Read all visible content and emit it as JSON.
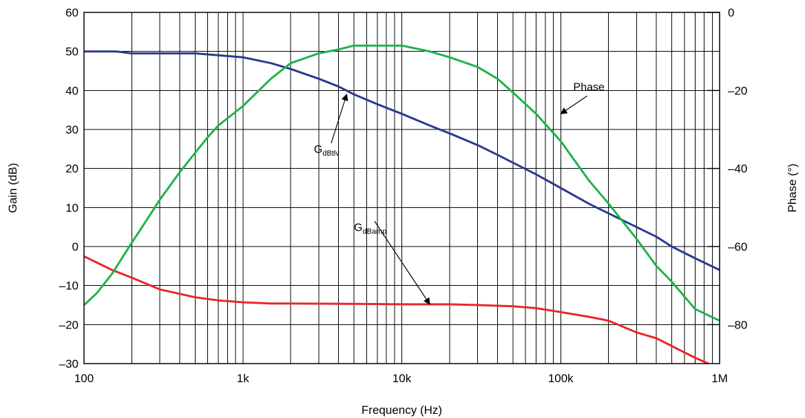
{
  "chart_data": {
    "type": "line",
    "title": "",
    "xlabel": "Frequency (Hz)",
    "ylabel": "Gain (dB)",
    "y2label": "Phase (°)",
    "x_scale": "log",
    "xlim": [
      100,
      1000000
    ],
    "ylim": [
      -30,
      60
    ],
    "y2lim": [
      -90,
      0
    ],
    "grid": true,
    "x_ticks": [
      {
        "value": 100,
        "label": "100"
      },
      {
        "value": 1000,
        "label": "1k"
      },
      {
        "value": 10000,
        "label": "10k"
      },
      {
        "value": 100000,
        "label": "100k"
      },
      {
        "value": 1000000,
        "label": "1M"
      }
    ],
    "y_ticks": [
      {
        "value": 60,
        "label": "60"
      },
      {
        "value": 50,
        "label": "50"
      },
      {
        "value": 40,
        "label": "40"
      },
      {
        "value": 30,
        "label": "30"
      },
      {
        "value": 20,
        "label": "20"
      },
      {
        "value": 10,
        "label": "10"
      },
      {
        "value": 0,
        "label": "0"
      },
      {
        "value": -10,
        "label": "–10"
      },
      {
        "value": -20,
        "label": "–20"
      },
      {
        "value": -30,
        "label": "–30"
      }
    ],
    "y2_ticks": [
      {
        "value": 0,
        "label": "0"
      },
      {
        "value": -20,
        "label": "–20"
      },
      {
        "value": -40,
        "label": "–40"
      },
      {
        "value": -60,
        "label": "–60"
      },
      {
        "value": -80,
        "label": "–80"
      }
    ],
    "series": [
      {
        "key": "gdbtlv",
        "axis": "left",
        "color": "#2b3990",
        "x": [
          100,
          160,
          200,
          300,
          500,
          700,
          1000,
          1500,
          2000,
          3000,
          4000,
          5000,
          7000,
          10000,
          15000,
          20000,
          30000,
          40000,
          50000,
          70000,
          100000,
          150000,
          200000,
          300000,
          400000,
          500000,
          700000,
          1000000
        ],
        "values": [
          50,
          50,
          49.5,
          49.5,
          49.5,
          49,
          48.5,
          47,
          45.5,
          43,
          41,
          39,
          36.5,
          34,
          31,
          29,
          26,
          23.5,
          21.5,
          18.5,
          15,
          11,
          8.5,
          5,
          2.5,
          0,
          -3,
          -6
        ]
      },
      {
        "key": "gdbamp",
        "axis": "left",
        "color": "#e8262b",
        "x": [
          100,
          150,
          200,
          300,
          500,
          700,
          1000,
          1500,
          2000,
          5000,
          10000,
          20000,
          30000,
          50000,
          70000,
          100000,
          150000,
          200000,
          300000,
          400000,
          500000,
          700000,
          850000
        ],
        "values": [
          -2.5,
          -6,
          -8,
          -11,
          -13,
          -13.8,
          -14.3,
          -14.6,
          -14.6,
          -14.7,
          -14.8,
          -14.8,
          -15,
          -15.3,
          -15.8,
          -16.8,
          -18,
          -19,
          -22,
          -23.5,
          -25.5,
          -28.5,
          -30
        ]
      },
      {
        "key": "phase",
        "axis": "right",
        "color": "#1db34a",
        "x": [
          100,
          120,
          150,
          200,
          250,
          300,
          400,
          500,
          600,
          700,
          1000,
          1500,
          2000,
          3000,
          4000,
          5000,
          7000,
          10000,
          15000,
          20000,
          30000,
          40000,
          50000,
          70000,
          100000,
          150000,
          200000,
          300000,
          400000,
          500000,
          700000,
          1000000
        ],
        "values": [
          -75,
          -72,
          -67,
          -59,
          -53,
          -48,
          -41,
          -36,
          -32,
          -29,
          -24,
          -17,
          -13,
          -10.5,
          -9.5,
          -8.5,
          -8.5,
          -8.5,
          -10,
          -11.5,
          -14,
          -17,
          -20.5,
          -26,
          -33,
          -43,
          -49,
          -58,
          -65,
          -69,
          -76,
          -79
        ]
      }
    ],
    "annotations": [
      {
        "key": "phase",
        "text": "Phase",
        "sub": "",
        "x": 120000,
        "y": -20,
        "arrow_to": [
          100000,
          -26
        ]
      },
      {
        "key": "gdbtlv",
        "text": "G",
        "sub": "dBtlv",
        "x": 2800,
        "y": 24,
        "arrow_to": [
          4500,
          39
        ]
      },
      {
        "key": "gdbamp",
        "text": "G",
        "sub": "dBamp",
        "x": 5000,
        "y": 4,
        "arrow_to": [
          15000,
          -14.8
        ]
      }
    ]
  }
}
